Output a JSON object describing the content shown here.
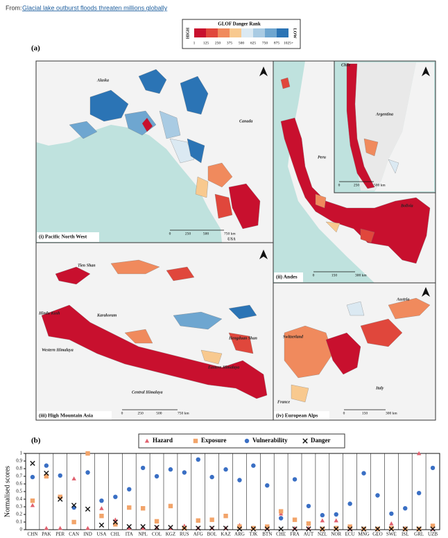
{
  "header": {
    "prefix": "From:",
    "link": "Glacial lake outburst floods threaten millions globally"
  },
  "legend": {
    "title": "GLOF Danger Rank",
    "high": "HIGH",
    "low": "LOW",
    "labels": [
      "1",
      "125",
      "250",
      "375",
      "500",
      "625",
      "750",
      "875",
      "1025+"
    ],
    "colors": [
      "#c8102e",
      "#e0473c",
      "#f08a5d",
      "#f8c98f",
      "#dbe9f2",
      "#a9cbe3",
      "#6ea6d0",
      "#2b74b5"
    ]
  },
  "panel_a": {
    "label": "(a)",
    "maps": [
      {
        "title": "(i) Pacific North West",
        "places": [
          "Alaska",
          "Canada",
          "USA"
        ],
        "scales": [
          [
            "0",
            "250",
            "500",
            "750 km"
          ]
        ]
      },
      {
        "title": "(ii) Andes",
        "places": [
          "Chile",
          "Argentina",
          "Peru",
          "Bolivia"
        ],
        "scales": [
          [
            "0",
            "250",
            "500 km"
          ],
          [
            "0",
            "150",
            "300 km"
          ]
        ]
      },
      {
        "title": "(iii) High Mountain Asia",
        "places": [
          "Tien Shan",
          "Hindu Kush",
          "Karakoram",
          "Western Himalaya",
          "Central Himalaya",
          "Eastern Himalaya",
          "Hengduan Shan"
        ],
        "scales": [
          [
            "0",
            "250",
            "500",
            "750 km"
          ]
        ]
      },
      {
        "title": "(iv) European Alps",
        "places": [
          "Austria",
          "Switzerland",
          "Italy",
          "France"
        ],
        "scales": [
          [
            "0",
            "150",
            "300 km"
          ]
        ]
      }
    ]
  },
  "chart_data": {
    "type": "scatter",
    "label": "(b)",
    "y_label": "Normalised scores",
    "categories": [
      "CHN",
      "PAK",
      "PER",
      "CAN",
      "IND",
      "USA",
      "CHL",
      "ITA",
      "NPL",
      "COL",
      "KGZ",
      "RUS",
      "AFG",
      "BOL",
      "KAZ",
      "ARG",
      "TJK",
      "BTN",
      "CHE",
      "FRA",
      "AUT",
      "NZL",
      "NOR",
      "ECU",
      "MNG",
      "GEO",
      "SWE",
      "ISL",
      "GRL",
      "UZB"
    ],
    "series": [
      {
        "name": "Hazard",
        "color": "#e0606e",
        "marker": "triangle",
        "values": [
          0.32,
          0.02,
          0.02,
          0.67,
          0.02,
          0.28,
          0.13,
          0.02,
          0.02,
          0.03,
          0.02,
          0.05,
          0.02,
          0.02,
          0.02,
          0.06,
          0.02,
          0.02,
          0.21,
          0.02,
          0.02,
          0.12,
          0.12,
          0.01,
          0.01,
          0.01,
          0.08,
          0.02,
          1.0,
          0.01
        ]
      },
      {
        "name": "Exposure",
        "color": "#f2a46a",
        "marker": "square",
        "values": [
          0.38,
          0.7,
          0.43,
          0.1,
          1.0,
          0.18,
          0.07,
          0.29,
          0.28,
          0.11,
          0.31,
          0.02,
          0.12,
          0.13,
          0.18,
          0.04,
          0.02,
          0.04,
          0.24,
          0.13,
          0.08,
          0.01,
          0.02,
          0.04,
          0.01,
          0.01,
          0.02,
          0.01,
          0.01,
          0.05
        ]
      },
      {
        "name": "Vulnerability",
        "color": "#3a6fc4",
        "marker": "circle",
        "values": [
          0.69,
          0.84,
          0.71,
          0.29,
          0.75,
          0.38,
          0.43,
          0.53,
          0.81,
          0.7,
          0.79,
          0.75,
          0.92,
          0.69,
          0.79,
          0.65,
          0.84,
          0.58,
          0.15,
          0.66,
          0.31,
          0.19,
          0.2,
          0.34,
          0.74,
          0.45,
          0.21,
          0.28,
          0.48,
          0.81
        ]
      },
      {
        "name": "Danger",
        "color": "#111111",
        "marker": "cross",
        "values": [
          0.87,
          0.74,
          0.4,
          0.32,
          0.27,
          0.06,
          0.1,
          0.04,
          0.04,
          0.03,
          0.03,
          0.02,
          0.02,
          0.02,
          0.02,
          0.01,
          0.01,
          0.01,
          0.01,
          0.01,
          0.01,
          0.01,
          0.01,
          0.01,
          0.01,
          0.01,
          0.01,
          0.01,
          0.01,
          0.01
        ]
      }
    ],
    "ylim": [
      0,
      1
    ],
    "yticks": [
      0,
      0.1,
      0.2,
      0.3,
      0.4,
      0.5,
      0.6,
      0.7,
      0.8,
      0.9,
      1
    ]
  }
}
